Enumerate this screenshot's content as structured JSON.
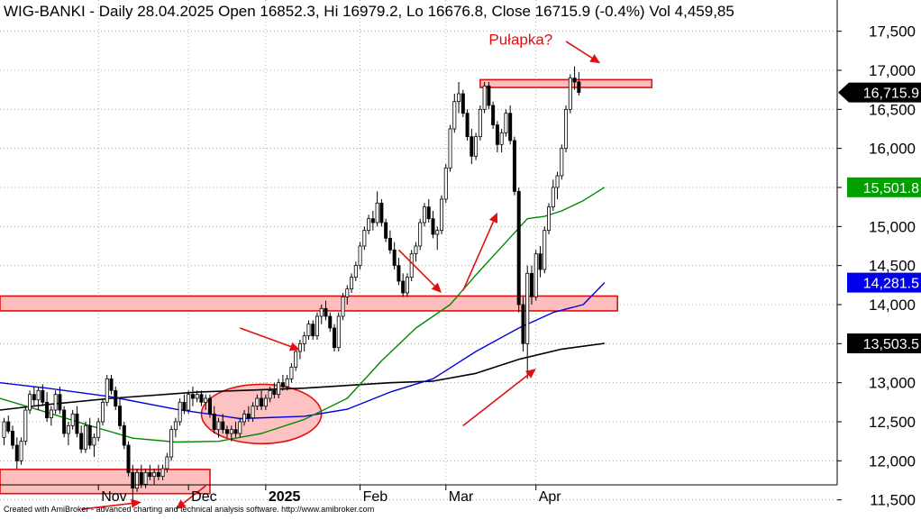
{
  "header": {
    "text": "WIG-BANKI - Daily 28.04.2025 Open 16852.3, Hi 16979.2, Lo 16676.8, Close 16715.9 (-0.4%) Vol 4,459,85"
  },
  "credit": "Created with AmiBroker - advanced charting and technical analysis software. http://www.amibroker.com",
  "chart_data": {
    "type": "candlestick",
    "title": "WIG-BANKI - Daily",
    "ylim": [
      11300,
      17900
    ],
    "y_ticks": [
      {
        "value": 11500,
        "label": "11,500"
      },
      {
        "value": 12000,
        "label": "12,000"
      },
      {
        "value": 12500,
        "label": "12,500"
      },
      {
        "value": 13000,
        "label": "13,000"
      },
      {
        "value": 13500,
        "label": "13,500"
      },
      {
        "value": 14000,
        "label": "14,000"
      },
      {
        "value": 14500,
        "label": "14,500"
      },
      {
        "value": 15000,
        "label": "15,000"
      },
      {
        "value": 15500,
        "label": "15,500"
      },
      {
        "value": 16000,
        "label": "16,000"
      },
      {
        "value": 16500,
        "label": "16,500"
      },
      {
        "value": 17000,
        "label": "17,000"
      },
      {
        "value": 17500,
        "label": "17,500"
      }
    ],
    "x_ticks": [
      {
        "index": 22,
        "label": "Nov",
        "year": false
      },
      {
        "index": 43,
        "label": "Dec",
        "year": false
      },
      {
        "index": 61,
        "label": "2025",
        "year": true
      },
      {
        "index": 83,
        "label": "Feb",
        "year": false
      },
      {
        "index": 103,
        "label": "Mar",
        "year": false
      },
      {
        "index": 124,
        "label": "Apr",
        "year": false
      }
    ],
    "price_labels": [
      {
        "value": 16715.9,
        "label": "16,715.9",
        "bg": "#000000",
        "fg": "#ffffff",
        "pointer": true
      },
      {
        "value": 15501.8,
        "label": "15,501.8",
        "bg": "#00a000",
        "fg": "#ffffff",
        "pointer": false
      },
      {
        "value": 14281.5,
        "label": "14,281.5",
        "bg": "#0000ee",
        "fg": "#ffffff",
        "pointer": false
      },
      {
        "value": 13503.5,
        "label": "13,503.5",
        "bg": "#000000",
        "fg": "#ffffff",
        "pointer": false
      }
    ],
    "zones": [
      {
        "i0": -1,
        "i1": 48,
        "lo": 11580,
        "hi": 11890
      },
      {
        "i0": -1,
        "i1": 143,
        "lo": 13920,
        "hi": 14110
      },
      {
        "i0": 111,
        "i1": 151,
        "lo": 16780,
        "hi": 16880
      }
    ],
    "ellipse": {
      "cx": 60,
      "cy": 12600,
      "rx": 14,
      "ry": 380
    },
    "annotations": [
      {
        "text": "Pułapka?",
        "x": 113,
        "y": 17330
      }
    ],
    "arrows": [
      {
        "x1": 55,
        "y1": 13700,
        "x2": 69,
        "y2": 13420
      },
      {
        "x1": 47,
        "y1": 11680,
        "x2": 40,
        "y2": 11380
      },
      {
        "x1": 18,
        "y1": 11380,
        "x2": 32,
        "y2": 11470
      },
      {
        "x1": 92,
        "y1": 14700,
        "x2": 102,
        "y2": 14150
      },
      {
        "x1": 107,
        "y1": 14180,
        "x2": 115,
        "y2": 15180
      },
      {
        "x1": 107,
        "y1": 12450,
        "x2": 124,
        "y2": 13180
      },
      {
        "x1": 131,
        "y1": 17370,
        "x2": 139,
        "y2": 17090
      }
    ],
    "ma_series": [
      {
        "color": "#000000",
        "width": 1.6,
        "points": [
          [
            -1,
            12650
          ],
          [
            10,
            12720
          ],
          [
            25,
            12800
          ],
          [
            45,
            12880
          ],
          [
            70,
            12930
          ],
          [
            90,
            13000
          ],
          [
            100,
            13020
          ],
          [
            110,
            13120
          ],
          [
            120,
            13300
          ],
          [
            130,
            13430
          ],
          [
            140,
            13503.5
          ]
        ]
      },
      {
        "color": "#0000dd",
        "width": 1.4,
        "points": [
          [
            -1,
            13000
          ],
          [
            10,
            12930
          ],
          [
            25,
            12820
          ],
          [
            40,
            12660
          ],
          [
            55,
            12540
          ],
          [
            70,
            12570
          ],
          [
            80,
            12660
          ],
          [
            90,
            12880
          ],
          [
            100,
            13050
          ],
          [
            110,
            13400
          ],
          [
            120,
            13700
          ],
          [
            128,
            13900
          ],
          [
            135,
            14000
          ],
          [
            140,
            14281.5
          ]
        ]
      },
      {
        "color": "#008a00",
        "width": 1.4,
        "points": [
          [
            -1,
            12800
          ],
          [
            10,
            12620
          ],
          [
            20,
            12450
          ],
          [
            30,
            12290
          ],
          [
            40,
            12240
          ],
          [
            50,
            12250
          ],
          [
            60,
            12350
          ],
          [
            70,
            12530
          ],
          [
            80,
            12800
          ],
          [
            88,
            13280
          ],
          [
            96,
            13700
          ],
          [
            104,
            14000
          ],
          [
            110,
            14380
          ],
          [
            117,
            14800
          ],
          [
            122,
            15100
          ],
          [
            126,
            15130
          ],
          [
            130,
            15200
          ],
          [
            135,
            15330
          ],
          [
            140,
            15501.8
          ]
        ]
      }
    ],
    "candles": [
      [
        12300,
        12550,
        12200,
        12500
      ],
      [
        12500,
        12580,
        12350,
        12380
      ],
      [
        12380,
        12450,
        12150,
        12200
      ],
      [
        12200,
        12300,
        11900,
        12000
      ],
      [
        12000,
        12300,
        11950,
        12250
      ],
      [
        12250,
        12700,
        12200,
        12650
      ],
      [
        12650,
        12900,
        12600,
        12850
      ],
      [
        12850,
        12950,
        12700,
        12780
      ],
      [
        12780,
        12950,
        12650,
        12900
      ],
      [
        12900,
        12980,
        12700,
        12750
      ],
      [
        12750,
        12880,
        12500,
        12550
      ],
      [
        12550,
        12700,
        12450,
        12650
      ],
      [
        12650,
        12900,
        12600,
        12850
      ],
      [
        12850,
        12950,
        12600,
        12650
      ],
      [
        12650,
        12700,
        12300,
        12350
      ],
      [
        12350,
        12500,
        12200,
        12450
      ],
      [
        12450,
        12650,
        12400,
        12600
      ],
      [
        12600,
        12700,
        12300,
        12350
      ],
      [
        12350,
        12450,
        12100,
        12150
      ],
      [
        12150,
        12500,
        12100,
        12450
      ],
      [
        12450,
        12550,
        12150,
        12200
      ],
      [
        12200,
        12350,
        12050,
        12300
      ],
      [
        12300,
        12550,
        12250,
        12500
      ],
      [
        12500,
        12800,
        12450,
        12750
      ],
      [
        12750,
        13100,
        12700,
        13050
      ],
      [
        13050,
        13100,
        12850,
        12900
      ],
      [
        12900,
        12950,
        12650,
        12700
      ],
      [
        12700,
        12800,
        12400,
        12450
      ],
      [
        12450,
        12500,
        12150,
        12200
      ],
      [
        12200,
        12250,
        11800,
        11850
      ],
      [
        11850,
        11950,
        11400,
        11650
      ],
      [
        11650,
        11900,
        11600,
        11850
      ],
      [
        11850,
        11950,
        11650,
        11700
      ],
      [
        11700,
        11900,
        11650,
        11850
      ],
      [
        11850,
        11950,
        11750,
        11800
      ],
      [
        11800,
        11900,
        11700,
        11850
      ],
      [
        11850,
        11950,
        11750,
        11800
      ],
      [
        11800,
        11950,
        11750,
        11900
      ],
      [
        11900,
        12100,
        11850,
        12050
      ],
      [
        12050,
        12450,
        12000,
        12400
      ],
      [
        12400,
        12550,
        12300,
        12500
      ],
      [
        12500,
        12800,
        12450,
        12750
      ],
      [
        12750,
        12850,
        12600,
        12650
      ],
      [
        12650,
        12900,
        12600,
        12850
      ],
      [
        12850,
        12950,
        12700,
        12800
      ],
      [
        12800,
        12900,
        12750,
        12850
      ],
      [
        12850,
        12900,
        12700,
        12750
      ],
      [
        12750,
        12850,
        12650,
        12800
      ],
      [
        12800,
        12850,
        12550,
        12600
      ],
      [
        12600,
        12700,
        12350,
        12400
      ],
      [
        12400,
        12550,
        12300,
        12500
      ],
      [
        12500,
        12600,
        12350,
        12400
      ],
      [
        12400,
        12450,
        12300,
        12350
      ],
      [
        12350,
        12450,
        12250,
        12400
      ],
      [
        12400,
        12500,
        12300,
        12350
      ],
      [
        12350,
        12550,
        12300,
        12500
      ],
      [
        12500,
        12650,
        12450,
        12600
      ],
      [
        12600,
        12700,
        12500,
        12550
      ],
      [
        12550,
        12750,
        12500,
        12700
      ],
      [
        12700,
        12850,
        12650,
        12800
      ],
      [
        12800,
        12900,
        12650,
        12700
      ],
      [
        12700,
        12850,
        12650,
        12800
      ],
      [
        12800,
        12950,
        12750,
        12900
      ],
      [
        12900,
        13000,
        12800,
        12850
      ],
      [
        12850,
        13050,
        12800,
        13000
      ],
      [
        13000,
        13100,
        12900,
        12950
      ],
      [
        12950,
        13100,
        12900,
        13050
      ],
      [
        13050,
        13250,
        13000,
        13200
      ],
      [
        13200,
        13450,
        13150,
        13400
      ],
      [
        13400,
        13550,
        13300,
        13500
      ],
      [
        13500,
        13650,
        13400,
        13600
      ],
      [
        13600,
        13800,
        13550,
        13750
      ],
      [
        13750,
        13800,
        13550,
        13600
      ],
      [
        13600,
        13900,
        13550,
        13850
      ],
      [
        13850,
        14000,
        13750,
        13950
      ],
      [
        13950,
        14050,
        13800,
        13850
      ],
      [
        13850,
        13900,
        13650,
        13700
      ],
      [
        13700,
        13750,
        13400,
        13450
      ],
      [
        13450,
        13900,
        13400,
        13850
      ],
      [
        13850,
        14150,
        13800,
        14100
      ],
      [
        14100,
        14250,
        14000,
        14200
      ],
      [
        14200,
        14400,
        14150,
        14350
      ],
      [
        14350,
        14550,
        14300,
        14500
      ],
      [
        14500,
        14800,
        14450,
        14750
      ],
      [
        14750,
        15000,
        14700,
        14950
      ],
      [
        14950,
        15150,
        14900,
        15100
      ],
      [
        15100,
        15200,
        14950,
        15050
      ],
      [
        15050,
        15450,
        15000,
        15300
      ],
      [
        15300,
        15350,
        15000,
        15050
      ],
      [
        15050,
        15100,
        14800,
        14850
      ],
      [
        14850,
        14950,
        14650,
        14700
      ],
      [
        14700,
        14800,
        14450,
        14500
      ],
      [
        14500,
        14600,
        14250,
        14300
      ],
      [
        14300,
        14400,
        14100,
        14150
      ],
      [
        14150,
        14400,
        14100,
        14350
      ],
      [
        14350,
        14700,
        14300,
        14650
      ],
      [
        14650,
        14800,
        14550,
        14750
      ],
      [
        14750,
        15100,
        14700,
        15050
      ],
      [
        15050,
        15300,
        15000,
        15250
      ],
      [
        15250,
        15350,
        15050,
        15100
      ],
      [
        15100,
        15200,
        14850,
        14900
      ],
      [
        14900,
        15000,
        14700,
        14950
      ],
      [
        14950,
        15400,
        14900,
        15350
      ],
      [
        15350,
        15800,
        15300,
        15750
      ],
      [
        15750,
        16300,
        15700,
        16250
      ],
      [
        16250,
        16700,
        16200,
        16600
      ],
      [
        16600,
        16850,
        16450,
        16700
      ],
      [
        16700,
        16750,
        16400,
        16450
      ],
      [
        16450,
        16500,
        16100,
        16150
      ],
      [
        16150,
        16250,
        15800,
        15900
      ],
      [
        15900,
        16200,
        15850,
        16150
      ],
      [
        16150,
        16550,
        16100,
        16500
      ],
      [
        16500,
        16850,
        16450,
        16800
      ],
      [
        16800,
        16850,
        16500,
        16550
      ],
      [
        16550,
        16600,
        16250,
        16300
      ],
      [
        16300,
        16350,
        15950,
        16050
      ],
      [
        16050,
        16250,
        15950,
        16200
      ],
      [
        16200,
        16500,
        16150,
        16450
      ],
      [
        16450,
        16550,
        16050,
        16100
      ],
      [
        16100,
        16150,
        15400,
        15450
      ],
      [
        15450,
        15500,
        13900,
        14000
      ],
      [
        14000,
        14100,
        13400,
        13500
      ],
      [
        13500,
        14500,
        13050,
        14400
      ],
      [
        14400,
        14500,
        14000,
        14100
      ],
      [
        14100,
        14700,
        14050,
        14650
      ],
      [
        14650,
        14750,
        14350,
        14450
      ],
      [
        14450,
        15000,
        14400,
        14950
      ],
      [
        14950,
        15300,
        14900,
        15250
      ],
      [
        15250,
        15600,
        15200,
        15500
      ],
      [
        15500,
        15700,
        15350,
        15650
      ],
      [
        15650,
        16050,
        15600,
        16000
      ],
      [
        16000,
        16550,
        15950,
        16500
      ],
      [
        16500,
        16950,
        16450,
        16900
      ],
      [
        16900,
        17050,
        16750,
        16850
      ],
      [
        16852.3,
        16979.2,
        16676.8,
        16715.9
      ]
    ]
  }
}
